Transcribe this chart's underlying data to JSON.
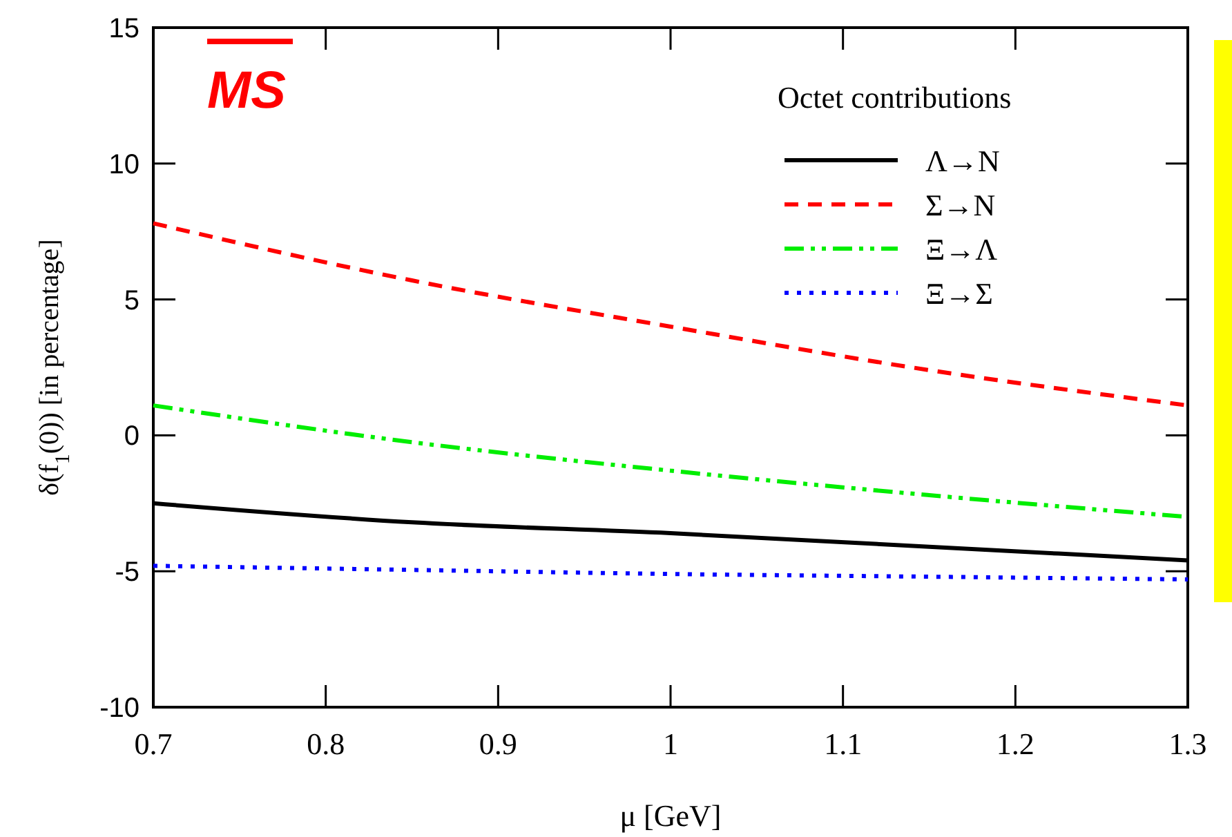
{
  "chart_data": {
    "type": "line",
    "xlabel": "μ [GeV]",
    "ylabel": "δ(f$_{1}$(0)) [in percentage]",
    "legend_title": "Octet contributions",
    "annotations": [
      "MS"
    ],
    "xlim": [
      0.7,
      1.3
    ],
    "xticks": [
      0.7,
      0.8,
      0.9,
      1,
      1.1,
      1.2,
      1.3
    ],
    "ylim": [
      -10,
      15
    ],
    "yticks": [
      -10,
      -5,
      0,
      5,
      10,
      15
    ],
    "x": [
      0.7,
      0.85,
      1.0,
      1.15,
      1.3
    ],
    "legend": "top right",
    "grid": false,
    "series": [
      {
        "name": "Λ→N",
        "color": "#000000",
        "line_style": "solid",
        "values": [
          -2.5,
          -3.2,
          -3.6,
          -4.1,
          -4.6
        ]
      },
      {
        "name": "Σ→N",
        "color": "#ff0000",
        "line_style": "dashed",
        "values": [
          7.8,
          5.7,
          4.0,
          2.4,
          1.1
        ]
      },
      {
        "name": "Ξ→Λ",
        "color": "#00ee00",
        "line_style": "dashdot",
        "values": [
          1.1,
          -0.25,
          -1.3,
          -2.2,
          -3.0
        ]
      },
      {
        "name": "Ξ→Σ",
        "color": "#0000ff",
        "line_style": "dotted",
        "values": [
          -4.8,
          -4.95,
          -5.1,
          -5.2,
          -5.3
        ]
      }
    ]
  }
}
